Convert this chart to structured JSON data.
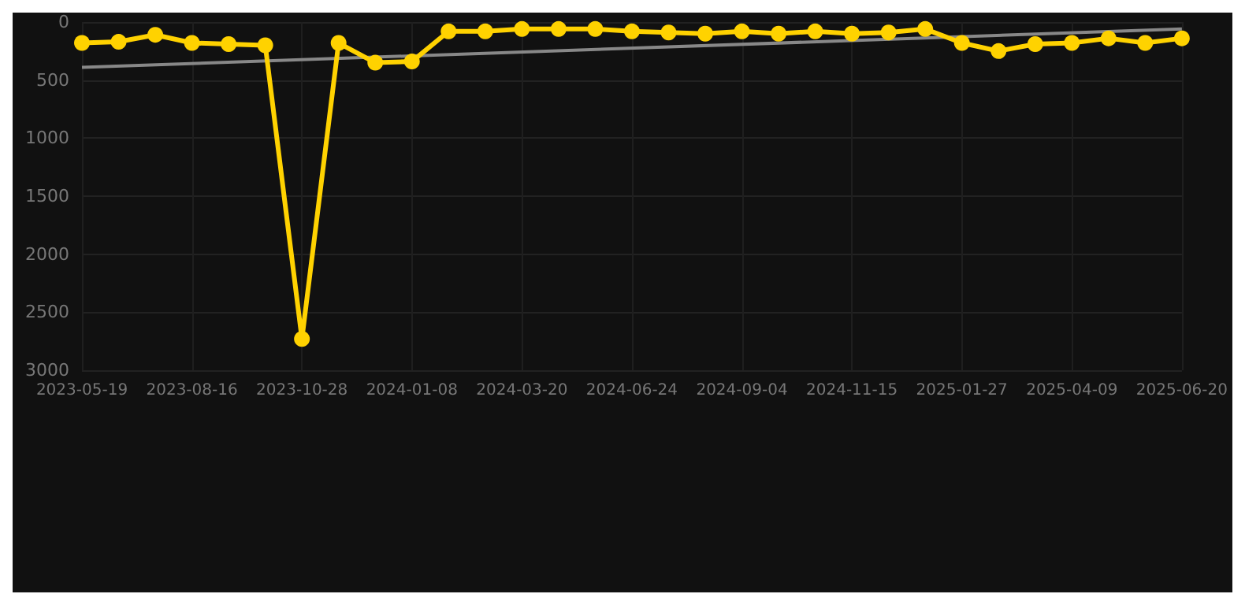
{
  "chart_data": {
    "type": "line",
    "categories": [
      "2023-05-19",
      null,
      null,
      "2023-08-16",
      null,
      null,
      "2023-10-28",
      null,
      null,
      "2024-01-08",
      null,
      null,
      "2024-03-20",
      null,
      null,
      "2024-06-24",
      null,
      null,
      "2024-09-04",
      null,
      null,
      "2024-11-15",
      null,
      null,
      "2025-01-27",
      null,
      null,
      "2025-04-09",
      null,
      null,
      "2025-06-20"
    ],
    "series": [
      {
        "color": "#ffd200",
        "marker": "circle",
        "values": [
          180,
          170,
          110,
          180,
          190,
          200,
          2730,
          180,
          350,
          340,
          80,
          80,
          60,
          60,
          60,
          80,
          90,
          100,
          80,
          100,
          80,
          100,
          90,
          60,
          180,
          250,
          190,
          180,
          140,
          180,
          140
        ]
      },
      {
        "color": "#888888",
        "marker": "none",
        "values": [
          390,
          null,
          null,
          null,
          null,
          null,
          null,
          null,
          null,
          null,
          null,
          null,
          null,
          null,
          null,
          null,
          null,
          null,
          null,
          null,
          null,
          null,
          null,
          null,
          null,
          null,
          null,
          null,
          null,
          null,
          60
        ]
      }
    ],
    "ylim": [
      3000,
      0
    ],
    "yticks": [
      0,
      500,
      1000,
      1500,
      2000,
      2500,
      3000
    ],
    "grid": true
  }
}
